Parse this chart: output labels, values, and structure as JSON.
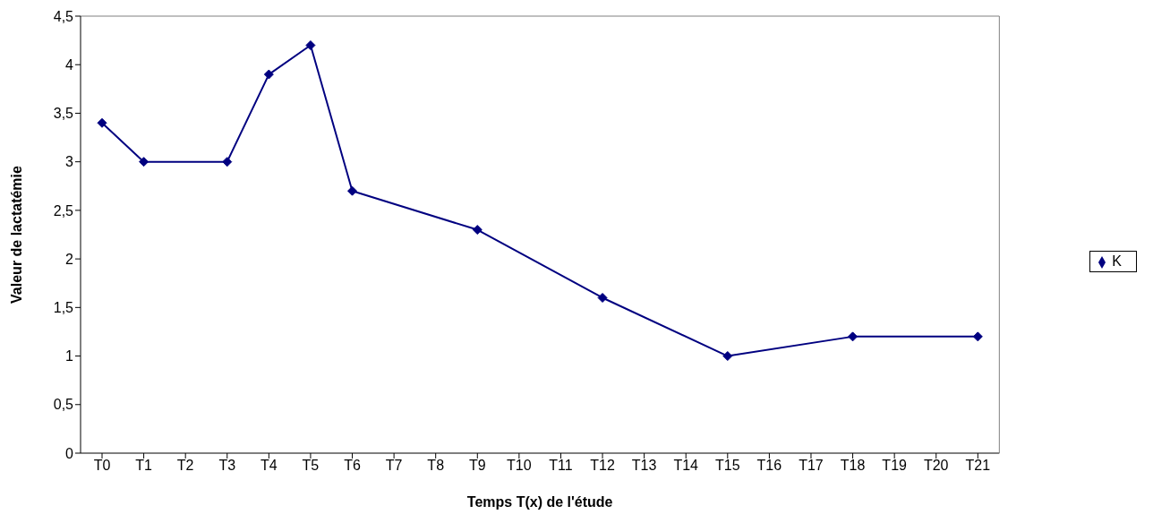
{
  "chart_data": {
    "type": "line",
    "xlabel": "Temps T(x) de l'étude",
    "ylabel": "Valeur de lactatémie",
    "categories": [
      "T0",
      "T1",
      "T2",
      "T3",
      "T4",
      "T5",
      "T6",
      "T7",
      "T8",
      "T9",
      "T10",
      "T11",
      "T12",
      "T13",
      "T14",
      "T15",
      "T16",
      "T17",
      "T18",
      "T19",
      "T20",
      "T21"
    ],
    "series": [
      {
        "name": "K",
        "color": "#000080",
        "values": [
          3.4,
          3.0,
          null,
          3.0,
          3.9,
          4.2,
          2.7,
          null,
          null,
          2.3,
          null,
          null,
          1.6,
          null,
          null,
          1.0,
          null,
          null,
          1.2,
          null,
          null,
          1.2
        ]
      }
    ],
    "ylim": [
      0,
      4.5
    ],
    "yticks": [
      0,
      {
        "value": 0.5,
        "label": "0,5"
      },
      1,
      {
        "value": 1.5,
        "label": "1,5"
      },
      2,
      {
        "value": 2.5,
        "label": "2,5"
      },
      3,
      {
        "value": 3.5,
        "label": "3,5"
      },
      4,
      {
        "value": 4.5,
        "label": "4,5"
      }
    ],
    "grid": false,
    "legend": "right",
    "marker": "diamond",
    "line_style": "solid"
  }
}
